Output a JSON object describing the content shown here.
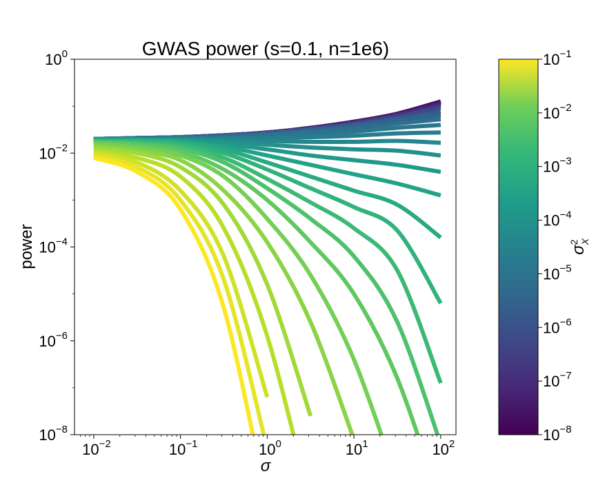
{
  "chart_data": {
    "type": "line",
    "title": "GWAS power (s=0.1, n=1e6)",
    "xlabel": "σ",
    "ylabel": "power",
    "xscale": "log",
    "yscale": "log",
    "xlim": [
      0.006,
      150
    ],
    "ylim": [
      1e-08,
      1
    ],
    "x_ticks": [
      {
        "base": "10",
        "exp": "−2"
      },
      {
        "base": "10",
        "exp": "−1"
      },
      {
        "base": "10",
        "exp": "0"
      },
      {
        "base": "10",
        "exp": "1"
      },
      {
        "base": "10",
        "exp": "2"
      }
    ],
    "y_ticks": [
      {
        "base": "10",
        "exp": "−8"
      },
      {
        "base": "10",
        "exp": "−6"
      },
      {
        "base": "10",
        "exp": "−4"
      },
      {
        "base": "10",
        "exp": "−2"
      },
      {
        "base": "10",
        "exp": "0"
      }
    ],
    "grid": false,
    "legend": "none",
    "x_log10_grid": [
      -2,
      -1.5,
      -1,
      -0.5,
      0,
      0.5,
      1,
      1.5,
      2
    ],
    "curves": [
      {
        "log10_sigma2_X": -1.0,
        "log10_power": [
          -2.1,
          -2.4,
          -3.2,
          -5.3,
          -9.5,
          null,
          null,
          null,
          null
        ]
      },
      {
        "log10_sigma2_X": -1.25,
        "log10_power": [
          -2.05,
          -2.3,
          -3.0,
          -4.7,
          -8.3,
          null,
          null,
          null,
          null
        ]
      },
      {
        "log10_sigma2_X": -1.5,
        "log10_power": [
          -2.0,
          -2.2,
          -2.8,
          -4.2,
          -7.2,
          null,
          null,
          null,
          null
        ]
      },
      {
        "log10_sigma2_X": -1.75,
        "log10_power": [
          -1.95,
          -2.1,
          -2.5,
          -3.6,
          -5.9,
          -9.5,
          null,
          null,
          null
        ]
      },
      {
        "log10_sigma2_X": -2.0,
        "log10_power": [
          -1.9,
          -2.0,
          -2.3,
          -3.1,
          -4.8,
          -7.6,
          null,
          null,
          null
        ]
      },
      {
        "log10_sigma2_X": -2.25,
        "log10_power": [
          -1.85,
          -1.95,
          -2.15,
          -2.8,
          -3.9,
          -5.6,
          -8.1,
          null,
          null
        ]
      },
      {
        "log10_sigma2_X": -2.5,
        "log10_power": [
          -1.8,
          -1.88,
          -2.05,
          -2.5,
          -3.4,
          -4.6,
          -6.4,
          -9.0,
          null
        ]
      },
      {
        "log10_sigma2_X": -2.75,
        "log10_power": [
          -1.78,
          -1.83,
          -1.97,
          -2.35,
          -3.0,
          -3.9,
          -5.0,
          -6.8,
          -9.5
        ]
      },
      {
        "log10_sigma2_X": -3.0,
        "log10_power": [
          -1.76,
          -1.8,
          -1.9,
          -2.2,
          -2.75,
          -3.4,
          -4.2,
          -5.6,
          -8.2
        ]
      },
      {
        "log10_sigma2_X": -3.25,
        "log10_power": [
          -1.75,
          -1.77,
          -1.85,
          -2.1,
          -2.55,
          -3.05,
          -3.6,
          -4.5,
          -6.9
        ]
      },
      {
        "log10_sigma2_X": -3.5,
        "log10_power": [
          -1.74,
          -1.75,
          -1.8,
          -2.0,
          -2.35,
          -2.75,
          -3.15,
          -3.65,
          -5.2
        ]
      },
      {
        "log10_sigma2_X": -3.75,
        "log10_power": [
          -1.73,
          -1.74,
          -1.77,
          -1.92,
          -2.2,
          -2.5,
          -2.8,
          -3.1,
          -3.8
        ]
      },
      {
        "log10_sigma2_X": -4.0,
        "log10_power": [
          -1.72,
          -1.72,
          -1.75,
          -1.86,
          -2.05,
          -2.25,
          -2.45,
          -2.65,
          -2.9
        ]
      },
      {
        "log10_sigma2_X": -4.25,
        "log10_power": [
          -1.71,
          -1.71,
          -1.73,
          -1.8,
          -1.92,
          -2.05,
          -2.15,
          -2.25,
          -2.4
        ]
      },
      {
        "log10_sigma2_X": -4.5,
        "log10_power": [
          -1.71,
          -1.7,
          -1.71,
          -1.75,
          -1.82,
          -1.88,
          -1.92,
          -1.95,
          -2.05
        ]
      },
      {
        "log10_sigma2_X": -4.75,
        "log10_power": [
          -1.7,
          -1.7,
          -1.7,
          -1.72,
          -1.74,
          -1.76,
          -1.76,
          -1.74,
          -1.78
        ]
      },
      {
        "log10_sigma2_X": -5.0,
        "log10_power": [
          -1.7,
          -1.69,
          -1.69,
          -1.69,
          -1.68,
          -1.66,
          -1.63,
          -1.58,
          -1.56
        ]
      },
      {
        "log10_sigma2_X": -5.25,
        "log10_power": [
          -1.7,
          -1.69,
          -1.68,
          -1.67,
          -1.64,
          -1.6,
          -1.54,
          -1.46,
          -1.4
        ]
      },
      {
        "log10_sigma2_X": -5.5,
        "log10_power": [
          -1.7,
          -1.69,
          -1.67,
          -1.65,
          -1.61,
          -1.55,
          -1.47,
          -1.37,
          -1.28
        ]
      },
      {
        "log10_sigma2_X": -5.75,
        "log10_power": [
          -1.7,
          -1.68,
          -1.67,
          -1.64,
          -1.59,
          -1.52,
          -1.43,
          -1.31,
          -1.19
        ]
      },
      {
        "log10_sigma2_X": -6.0,
        "log10_power": [
          -1.7,
          -1.68,
          -1.66,
          -1.63,
          -1.58,
          -1.5,
          -1.4,
          -1.27,
          -1.12
        ]
      },
      {
        "log10_sigma2_X": -6.5,
        "log10_power": [
          -1.7,
          -1.68,
          -1.66,
          -1.62,
          -1.57,
          -1.48,
          -1.37,
          -1.22,
          -1.03
        ]
      },
      {
        "log10_sigma2_X": -7.0,
        "log10_power": [
          -1.7,
          -1.68,
          -1.66,
          -1.62,
          -1.56,
          -1.47,
          -1.35,
          -1.19,
          -0.97
        ]
      },
      {
        "log10_sigma2_X": -7.5,
        "log10_power": [
          -1.7,
          -1.68,
          -1.66,
          -1.62,
          -1.56,
          -1.47,
          -1.34,
          -1.17,
          -0.92
        ]
      },
      {
        "log10_sigma2_X": -8.0,
        "log10_power": [
          -1.7,
          -1.68,
          -1.66,
          -1.62,
          -1.56,
          -1.46,
          -1.33,
          -1.16,
          -0.9
        ]
      }
    ],
    "colorbar": {
      "label": "σ",
      "label_sup": "2",
      "label_sub": "X",
      "scale": "log",
      "range": [
        1e-08,
        0.1
      ],
      "colormap": "viridis",
      "ticks": [
        {
          "base": "10",
          "exp": "−1"
        },
        {
          "base": "10",
          "exp": "−2"
        },
        {
          "base": "10",
          "exp": "−3"
        },
        {
          "base": "10",
          "exp": "−4"
        },
        {
          "base": "10",
          "exp": "−5"
        },
        {
          "base": "10",
          "exp": "−6"
        },
        {
          "base": "10",
          "exp": "−7"
        },
        {
          "base": "10",
          "exp": "−8"
        }
      ]
    }
  }
}
